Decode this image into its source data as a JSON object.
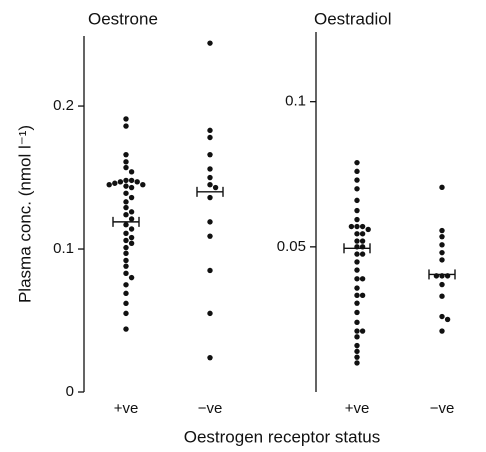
{
  "chart_data": [
    {
      "type": "strip",
      "title": "Oestrone",
      "y_label": "Plasma conc. (nmol l⁻¹)",
      "x_label": "Oestrogen receptor status",
      "categories": [
        "+ve",
        "−ve"
      ],
      "color": "#111111",
      "values": [
        [
          0.191,
          0.186,
          0.166,
          0.161,
          0.157,
          0.154,
          0.148,
          0.148,
          0.147,
          0.147,
          0.146,
          0.145,
          0.145,
          0.144,
          0.143,
          0.139,
          0.136,
          0.133,
          0.129,
          0.126,
          0.124,
          0.121,
          0.117,
          0.114,
          0.111,
          0.108,
          0.106,
          0.104,
          0.101,
          0.097,
          0.092,
          0.088,
          0.083,
          0.08,
          0.075,
          0.069,
          0.062,
          0.055,
          0.044
        ],
        [
          0.244,
          0.183,
          0.178,
          0.166,
          0.156,
          0.15,
          0.145,
          0.143,
          0.136,
          0.119,
          0.109,
          0.085,
          0.055,
          0.024
        ]
      ],
      "means": [
        0.119,
        0.14
      ],
      "ylim": [
        0,
        0.249
      ],
      "yticks": [
        0,
        0.1,
        0.2
      ]
    },
    {
      "type": "strip",
      "title": "Oestradiol",
      "categories": [
        "+ve",
        "−ve"
      ],
      "color": "#111111",
      "values": [
        [
          0.079,
          0.076,
          0.073,
          0.07,
          0.066,
          0.0625,
          0.0594,
          0.057,
          0.057,
          0.057,
          0.056,
          0.0545,
          0.0545,
          0.052,
          0.052,
          0.05,
          0.05,
          0.0475,
          0.0475,
          0.0448,
          0.042,
          0.039,
          0.039,
          0.0358,
          0.0333,
          0.0333,
          0.0306,
          0.0274,
          0.024,
          0.021,
          0.021,
          0.019,
          0.016,
          0.014,
          0.012,
          0.01
        ],
        [
          0.0705,
          0.0556,
          0.0535,
          0.0507,
          0.048,
          0.0455,
          0.04,
          0.04,
          0.04,
          0.037,
          0.033,
          0.026,
          0.025,
          0.021
        ]
      ],
      "means": [
        0.0495,
        0.0405
      ],
      "ylim": [
        0,
        0.124
      ],
      "yticks": [
        0.05,
        0.1
      ]
    }
  ]
}
